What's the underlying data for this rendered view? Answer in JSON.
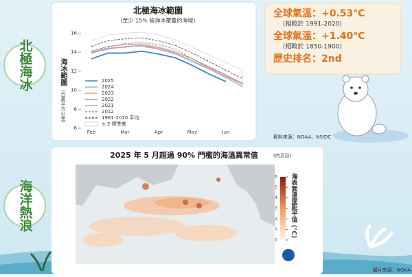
{
  "sections": [
    "北極海冰",
    "海洋熱浪"
  ],
  "stats": [
    {
      "text": "全球氣溫：+0.53°C",
      "note": "(相較於 1991-2020)"
    },
    {
      "text": "全球氣溫：+1.40°C",
      "note": "(相較於 1850-1900)"
    },
    {
      "text": "歷史排名：2nd"
    }
  ],
  "chart_data": {
    "type": "line",
    "title": "北極海冰範圍",
    "subtitle": "(至少 15% 被海冰覆蓋的海域)",
    "y_label": "海冰範圍",
    "y_unit": "(百萬平方公里)",
    "categories": [
      "Feb",
      null,
      "Mar",
      null,
      "Apr",
      null,
      "May",
      null,
      "Jun",
      null
    ],
    "ylim": [
      6,
      16.6
    ],
    "yticks": [
      6,
      8,
      10,
      12,
      14,
      16
    ],
    "band": {
      "name": "± 2 標準差",
      "color": "#ffffff",
      "lower": [
        14.0,
        14.6,
        14.8,
        14.9,
        14.6,
        14.1,
        13.3,
        12.3,
        11.3,
        10.3
      ],
      "upper": [
        15.2,
        15.8,
        16.0,
        16.1,
        15.8,
        15.3,
        14.5,
        13.7,
        12.9,
        12.1
      ]
    },
    "series": [
      {
        "name": "2025",
        "color": "#3a86c8",
        "dash": false,
        "values": [
          13.3,
          13.9,
          13.9,
          14.1,
          13.8,
          13.4,
          12.6,
          11.7,
          10.9,
          null
        ]
      },
      {
        "name": "2024",
        "color": "#8fb8d8",
        "dash": false,
        "values": [
          13.9,
          14.3,
          14.6,
          14.7,
          14.3,
          13.8,
          13.0,
          12.2,
          11.3,
          10.4
        ]
      },
      {
        "name": "2023",
        "color": "#e8a070",
        "dash": false,
        "values": [
          14.0,
          14.4,
          14.5,
          14.7,
          14.4,
          13.9,
          13.1,
          12.2,
          11.4,
          10.6
        ]
      },
      {
        "name": "2022",
        "color": "#9a9a9a",
        "dash": false,
        "values": [
          14.1,
          14.6,
          14.8,
          14.8,
          14.5,
          14.0,
          13.3,
          12.4,
          11.6,
          10.7
        ]
      },
      {
        "name": "2021",
        "color": "#c4a0cc",
        "dash": false,
        "values": [
          14.0,
          14.4,
          14.6,
          14.6,
          14.3,
          13.8,
          13.1,
          12.3,
          11.5,
          10.6
        ]
      },
      {
        "name": "2012",
        "color": "#d07878",
        "dash": true,
        "values": [
          13.9,
          14.5,
          14.9,
          15.0,
          14.8,
          14.3,
          13.3,
          12.5,
          11.6,
          10.7
        ]
      },
      {
        "name": "1981-2010 平均",
        "color": "#555555",
        "dash": true,
        "values": [
          14.6,
          15.2,
          15.4,
          15.5,
          15.2,
          14.7,
          13.9,
          13.0,
          12.1,
          11.2
        ]
      }
    ],
    "source": "資料來源：NOAA、NSIDC"
  },
  "map": {
    "title": "2025 年 5 月超過 90% 門檻的海溫異常值",
    "title_note": "(內文註)",
    "colorbar_label": "海表面溫度距平值 (°C)",
    "colorbar_lim": [
      0,
      6
    ],
    "colorbar_ticks": [
      0,
      1,
      2,
      3,
      4,
      5,
      6
    ],
    "credit": "圖片來源：NOAA"
  }
}
